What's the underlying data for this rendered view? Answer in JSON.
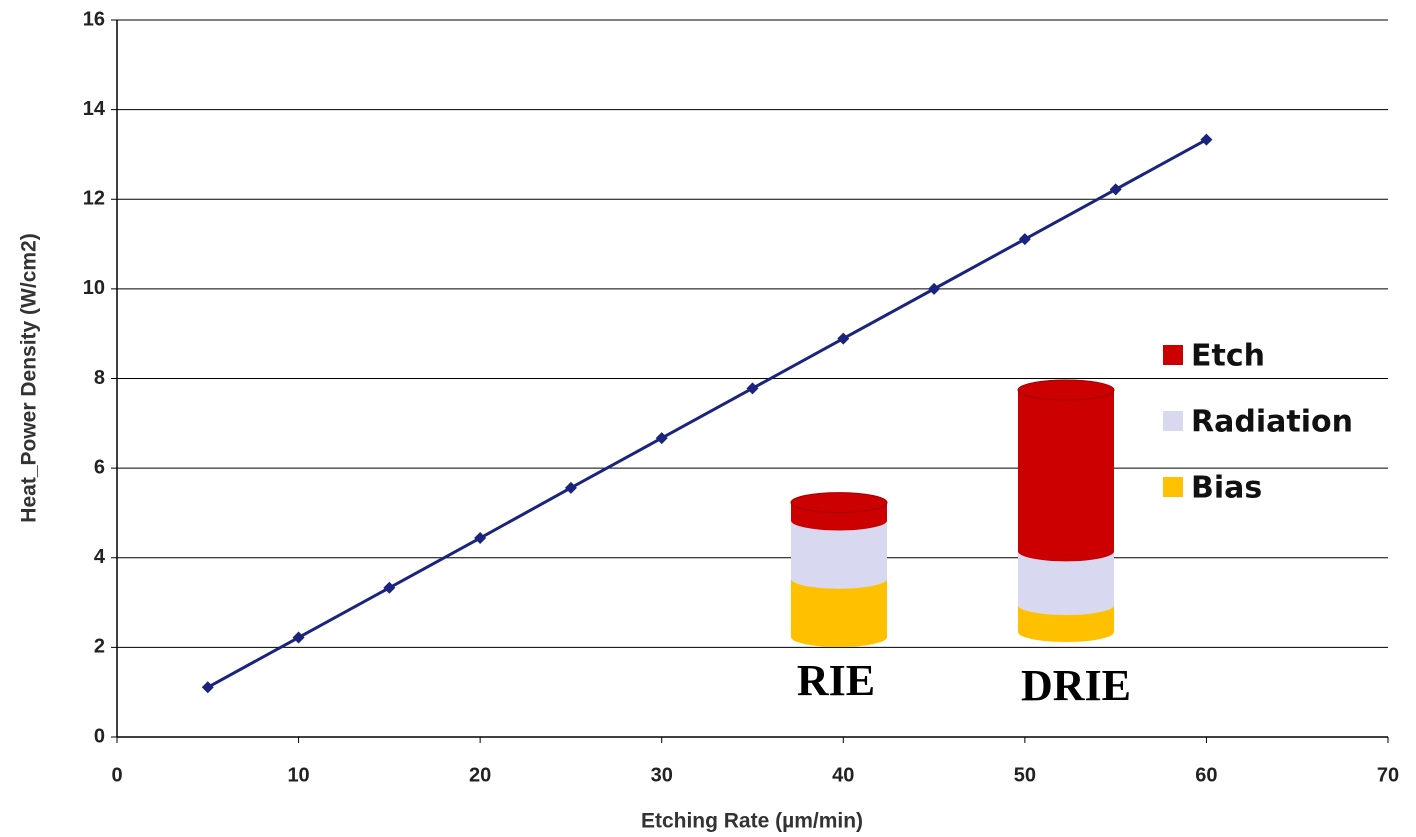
{
  "chart_data": [
    {
      "type": "line",
      "x_label": "Etching Rate (µm/min)",
      "y_label": "Heat_Power Density (W/cm2)",
      "x": [
        5,
        10,
        15,
        20,
        25,
        30,
        35,
        40,
        45,
        50,
        55,
        60
      ],
      "series": [
        {
          "color": "#1a237e",
          "values": [
            1.11,
            2.22,
            3.33,
            4.44,
            5.56,
            6.67,
            7.78,
            8.89,
            10,
            11.11,
            12.22,
            13.33
          ]
        }
      ],
      "xlim": [
        0,
        70
      ],
      "xticks": [
        0,
        10,
        20,
        30,
        40,
        50,
        60,
        70
      ],
      "ylim": [
        0,
        16
      ],
      "yticks": [
        0,
        2,
        4,
        6,
        8,
        10,
        12,
        14,
        16
      ],
      "grid": true
    },
    {
      "type": "bar",
      "stacked": true,
      "categories": [
        "RIE",
        "DRIE"
      ],
      "series": [
        {
          "name": "Bias",
          "color": "#ffc000",
          "values": [
            1.3,
            0.6
          ]
        },
        {
          "name": "Radiation",
          "color": "#d8d8f0",
          "values": [
            1.3,
            1.2
          ]
        },
        {
          "name": "Etch",
          "color": "#cc0000",
          "values": [
            0.4,
            3.6
          ]
        }
      ]
    }
  ]
}
